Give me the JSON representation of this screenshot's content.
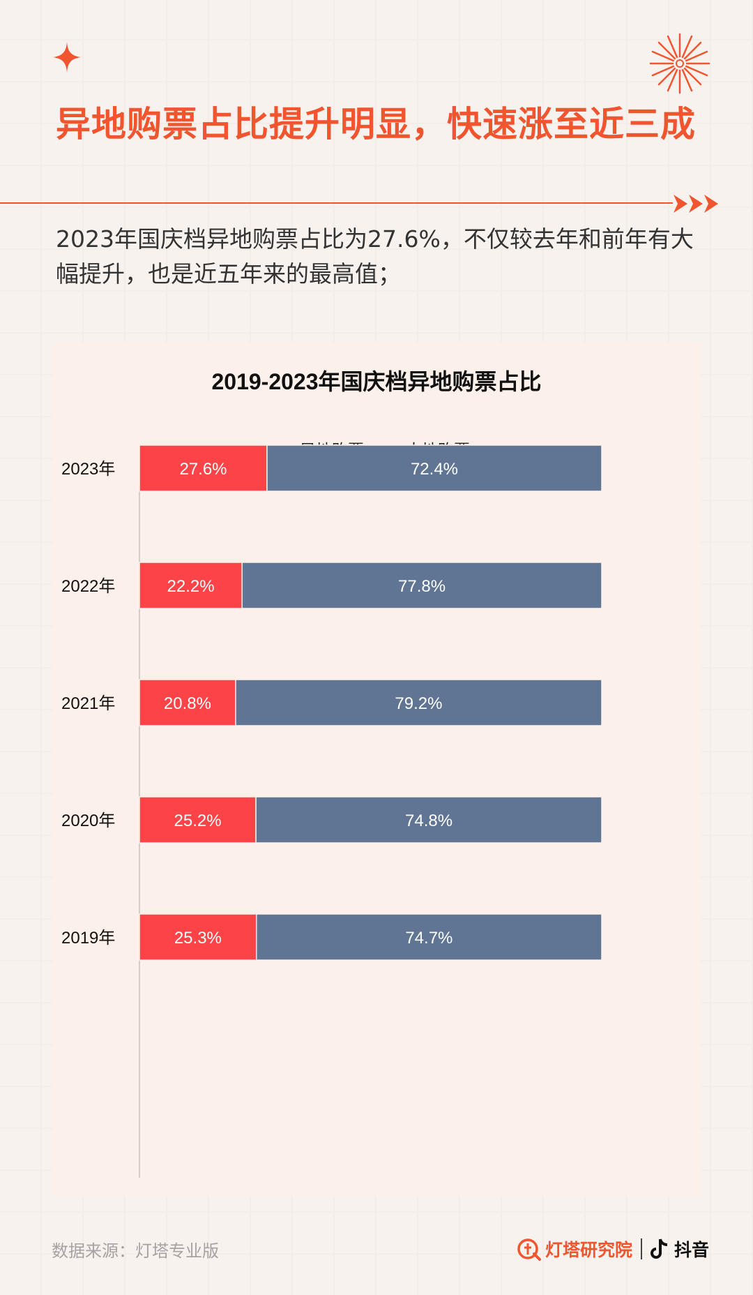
{
  "headline": "异地购票占比提升明显，快速涨至近三成",
  "subtitle": "2023年国庆档异地购票占比为27.6%，不仅较去年和前年有大幅提升，也是近五年来的最高值；",
  "colors": {
    "accent": "#f0552f",
    "remote": "#fc4448",
    "local": "#607594"
  },
  "chart_data": {
    "type": "bar",
    "orientation": "horizontal",
    "stacked": true,
    "title": "2019-2023年国庆档异地购票占比",
    "legend_position": "top",
    "categories": [
      "2023年",
      "2022年",
      "2021年",
      "2020年",
      "2019年"
    ],
    "series": [
      {
        "name": "异地购票",
        "color": "#fc4448",
        "values": [
          27.6,
          22.2,
          20.8,
          25.2,
          25.3
        ],
        "labels": [
          "27.6%",
          "22.2%",
          "20.8%",
          "25.2%",
          "25.3%"
        ]
      },
      {
        "name": "本地购票",
        "color": "#607594",
        "values": [
          72.4,
          77.8,
          79.2,
          74.8,
          74.7
        ],
        "labels": [
          "72.4%",
          "77.8%",
          "79.2%",
          "74.8%",
          "74.7%"
        ]
      }
    ],
    "xlim": [
      0,
      100
    ],
    "grid": false
  },
  "footer": {
    "source": "数据来源：灯塔专业版",
    "brand": "灯塔研究院",
    "platform": "抖音"
  }
}
